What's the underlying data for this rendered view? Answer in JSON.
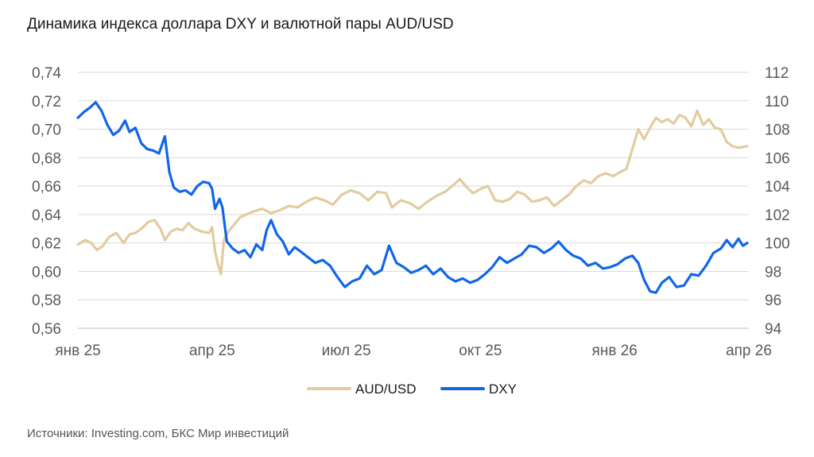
{
  "title": "Динамика индекса доллара DXY и валютной пары AUD/USD",
  "source": "Источники: Investing.com, БКС Мир инвестиций",
  "colors": {
    "aud": "#E2CC9F",
    "dxy": "#1166E8",
    "grid": "#D9D9D9",
    "axis": "#BFBFBF"
  },
  "chart_data": {
    "type": "line",
    "x_ticks": [
      "янв 25",
      "апр 25",
      "июл 25",
      "окт 25",
      "янв 26",
      "апр 26"
    ],
    "x_range": [
      "2025-01-01",
      "2026-04-01"
    ],
    "y_left": {
      "ticks": [
        "0,56",
        "0,58",
        "0,60",
        "0,62",
        "0,64",
        "0,66",
        "0,68",
        "0,70",
        "0,72",
        "0,74"
      ],
      "ylim": [
        0.56,
        0.74
      ]
    },
    "y_right": {
      "ticks": [
        "94",
        "96",
        "98",
        "100",
        "102",
        "104",
        "106",
        "108",
        "110",
        "112"
      ],
      "ylim": [
        94,
        112
      ]
    },
    "grid": true,
    "legend_position": "bottom",
    "series": [
      {
        "name": "AUD/USD",
        "axis": "left",
        "points": [
          [
            "2025-01-01",
            0.619
          ],
          [
            "2025-01-06",
            0.622
          ],
          [
            "2025-01-10",
            0.62
          ],
          [
            "2025-01-14",
            0.615
          ],
          [
            "2025-01-18",
            0.618
          ],
          [
            "2025-01-22",
            0.624
          ],
          [
            "2025-01-27",
            0.627
          ],
          [
            "2025-02-01",
            0.62
          ],
          [
            "2025-02-05",
            0.626
          ],
          [
            "2025-02-09",
            0.627
          ],
          [
            "2025-02-13",
            0.63
          ],
          [
            "2025-02-18",
            0.635
          ],
          [
            "2025-02-22",
            0.636
          ],
          [
            "2025-02-26",
            0.63
          ],
          [
            "2025-03-01",
            0.622
          ],
          [
            "2025-03-05",
            0.628
          ],
          [
            "2025-03-09",
            0.63
          ],
          [
            "2025-03-13",
            0.629
          ],
          [
            "2025-03-17",
            0.634
          ],
          [
            "2025-03-21",
            0.63
          ],
          [
            "2025-03-26",
            0.628
          ],
          [
            "2025-03-31",
            0.627
          ],
          [
            "2025-04-02",
            0.631
          ],
          [
            "2025-04-04",
            0.614
          ],
          [
            "2025-04-06",
            0.605
          ],
          [
            "2025-04-08",
            0.598
          ],
          [
            "2025-04-10",
            0.622
          ],
          [
            "2025-04-13",
            0.628
          ],
          [
            "2025-04-17",
            0.633
          ],
          [
            "2025-04-21",
            0.638
          ],
          [
            "2025-04-25",
            0.64
          ],
          [
            "2025-04-30",
            0.642
          ],
          [
            "2025-05-06",
            0.644
          ],
          [
            "2025-05-12",
            0.641
          ],
          [
            "2025-05-18",
            0.643
          ],
          [
            "2025-05-24",
            0.646
          ],
          [
            "2025-05-30",
            0.645
          ],
          [
            "2025-06-05",
            0.649
          ],
          [
            "2025-06-11",
            0.652
          ],
          [
            "2025-06-17",
            0.65
          ],
          [
            "2025-06-23",
            0.647
          ],
          [
            "2025-06-29",
            0.654
          ],
          [
            "2025-07-05",
            0.657
          ],
          [
            "2025-07-11",
            0.655
          ],
          [
            "2025-07-17",
            0.65
          ],
          [
            "2025-07-23",
            0.656
          ],
          [
            "2025-07-29",
            0.655
          ],
          [
            "2025-08-02",
            0.645
          ],
          [
            "2025-08-08",
            0.65
          ],
          [
            "2025-08-14",
            0.648
          ],
          [
            "2025-08-20",
            0.644
          ],
          [
            "2025-08-26",
            0.649
          ],
          [
            "2025-09-01",
            0.653
          ],
          [
            "2025-09-07",
            0.656
          ],
          [
            "2025-09-13",
            0.661
          ],
          [
            "2025-09-17",
            0.665
          ],
          [
            "2025-09-21",
            0.66
          ],
          [
            "2025-09-26",
            0.655
          ],
          [
            "2025-10-01",
            0.658
          ],
          [
            "2025-10-06",
            0.66
          ],
          [
            "2025-10-11",
            0.65
          ],
          [
            "2025-10-16",
            0.649
          ],
          [
            "2025-10-21",
            0.651
          ],
          [
            "2025-10-26",
            0.656
          ],
          [
            "2025-10-31",
            0.654
          ],
          [
            "2025-11-05",
            0.649
          ],
          [
            "2025-11-10",
            0.65
          ],
          [
            "2025-11-15",
            0.652
          ],
          [
            "2025-11-20",
            0.646
          ],
          [
            "2025-11-25",
            0.65
          ],
          [
            "2025-11-30",
            0.654
          ],
          [
            "2025-12-05",
            0.66
          ],
          [
            "2025-12-10",
            0.664
          ],
          [
            "2025-12-15",
            0.662
          ],
          [
            "2025-12-20",
            0.667
          ],
          [
            "2025-12-25",
            0.669
          ],
          [
            "2025-12-30",
            0.667
          ],
          [
            "2026-01-04",
            0.67
          ],
          [
            "2026-01-08",
            0.672
          ],
          [
            "2026-01-12",
            0.686
          ],
          [
            "2026-01-16",
            0.7
          ],
          [
            "2026-01-20",
            0.693
          ],
          [
            "2026-01-24",
            0.701
          ],
          [
            "2026-01-28",
            0.708
          ],
          [
            "2026-02-01",
            0.705
          ],
          [
            "2026-02-05",
            0.707
          ],
          [
            "2026-02-09",
            0.704
          ],
          [
            "2026-02-13",
            0.71
          ],
          [
            "2026-02-17",
            0.708
          ],
          [
            "2026-02-21",
            0.702
          ],
          [
            "2026-02-25",
            0.713
          ],
          [
            "2026-03-01",
            0.703
          ],
          [
            "2026-03-05",
            0.707
          ],
          [
            "2026-03-09",
            0.701
          ],
          [
            "2026-03-13",
            0.7
          ],
          [
            "2026-03-17",
            0.691
          ],
          [
            "2026-03-21",
            0.688
          ],
          [
            "2026-03-25",
            0.687
          ],
          [
            "2026-03-31",
            0.688
          ]
        ]
      },
      {
        "name": "DXY",
        "axis": "right",
        "points": [
          [
            "2025-01-01",
            108.8
          ],
          [
            "2025-01-05",
            109.2
          ],
          [
            "2025-01-09",
            109.5
          ],
          [
            "2025-01-13",
            109.9
          ],
          [
            "2025-01-17",
            109.3
          ],
          [
            "2025-01-21",
            108.3
          ],
          [
            "2025-01-25",
            107.6
          ],
          [
            "2025-01-29",
            107.9
          ],
          [
            "2025-02-02",
            108.6
          ],
          [
            "2025-02-05",
            107.8
          ],
          [
            "2025-02-09",
            108.1
          ],
          [
            "2025-02-13",
            107.0
          ],
          [
            "2025-02-17",
            106.6
          ],
          [
            "2025-02-21",
            106.5
          ],
          [
            "2025-02-25",
            106.3
          ],
          [
            "2025-03-01",
            107.5
          ],
          [
            "2025-03-04",
            105.0
          ],
          [
            "2025-03-07",
            103.9
          ],
          [
            "2025-03-11",
            103.6
          ],
          [
            "2025-03-15",
            103.7
          ],
          [
            "2025-03-19",
            103.4
          ],
          [
            "2025-03-23",
            104.0
          ],
          [
            "2025-03-27",
            104.3
          ],
          [
            "2025-03-31",
            104.2
          ],
          [
            "2025-04-02",
            103.8
          ],
          [
            "2025-04-04",
            102.4
          ],
          [
            "2025-04-07",
            103.1
          ],
          [
            "2025-04-09",
            102.5
          ],
          [
            "2025-04-12",
            100.1
          ],
          [
            "2025-04-16",
            99.6
          ],
          [
            "2025-04-20",
            99.3
          ],
          [
            "2025-04-24",
            99.5
          ],
          [
            "2025-04-28",
            99.0
          ],
          [
            "2025-05-02",
            99.9
          ],
          [
            "2025-05-06",
            99.5
          ],
          [
            "2025-05-09",
            100.9
          ],
          [
            "2025-05-12",
            101.6
          ],
          [
            "2025-05-16",
            100.6
          ],
          [
            "2025-05-20",
            100.1
          ],
          [
            "2025-05-24",
            99.2
          ],
          [
            "2025-05-28",
            99.7
          ],
          [
            "2025-06-01",
            99.4
          ],
          [
            "2025-06-06",
            99.0
          ],
          [
            "2025-06-11",
            98.6
          ],
          [
            "2025-06-16",
            98.8
          ],
          [
            "2025-06-21",
            98.4
          ],
          [
            "2025-06-26",
            97.6
          ],
          [
            "2025-07-01",
            96.9
          ],
          [
            "2025-07-06",
            97.3
          ],
          [
            "2025-07-11",
            97.5
          ],
          [
            "2025-07-16",
            98.4
          ],
          [
            "2025-07-21",
            97.8
          ],
          [
            "2025-07-26",
            98.1
          ],
          [
            "2025-07-31",
            99.8
          ],
          [
            "2025-08-05",
            98.6
          ],
          [
            "2025-08-10",
            98.3
          ],
          [
            "2025-08-15",
            97.9
          ],
          [
            "2025-08-20",
            98.1
          ],
          [
            "2025-08-25",
            98.4
          ],
          [
            "2025-08-30",
            97.8
          ],
          [
            "2025-09-04",
            98.2
          ],
          [
            "2025-09-09",
            97.6
          ],
          [
            "2025-09-14",
            97.3
          ],
          [
            "2025-09-19",
            97.5
          ],
          [
            "2025-09-24",
            97.2
          ],
          [
            "2025-09-29",
            97.4
          ],
          [
            "2025-10-04",
            97.8
          ],
          [
            "2025-10-09",
            98.3
          ],
          [
            "2025-10-14",
            99.0
          ],
          [
            "2025-10-19",
            98.6
          ],
          [
            "2025-10-24",
            98.9
          ],
          [
            "2025-10-29",
            99.2
          ],
          [
            "2025-11-03",
            99.8
          ],
          [
            "2025-11-08",
            99.7
          ],
          [
            "2025-11-13",
            99.3
          ],
          [
            "2025-11-18",
            99.6
          ],
          [
            "2025-11-23",
            100.1
          ],
          [
            "2025-11-28",
            99.5
          ],
          [
            "2025-12-03",
            99.1
          ],
          [
            "2025-12-08",
            98.9
          ],
          [
            "2025-12-13",
            98.4
          ],
          [
            "2025-12-18",
            98.6
          ],
          [
            "2025-12-23",
            98.2
          ],
          [
            "2025-12-28",
            98.3
          ],
          [
            "2026-01-02",
            98.5
          ],
          [
            "2026-01-07",
            98.9
          ],
          [
            "2026-01-12",
            99.1
          ],
          [
            "2026-01-16",
            98.6
          ],
          [
            "2026-01-20",
            97.4
          ],
          [
            "2026-01-24",
            96.6
          ],
          [
            "2026-01-28",
            96.5
          ],
          [
            "2026-02-01",
            97.2
          ],
          [
            "2026-02-06",
            97.6
          ],
          [
            "2026-02-11",
            96.9
          ],
          [
            "2026-02-16",
            97.0
          ],
          [
            "2026-02-21",
            97.8
          ],
          [
            "2026-02-26",
            97.7
          ],
          [
            "2026-03-03",
            98.4
          ],
          [
            "2026-03-08",
            99.3
          ],
          [
            "2026-03-13",
            99.6
          ],
          [
            "2026-03-17",
            100.2
          ],
          [
            "2026-03-21",
            99.7
          ],
          [
            "2026-03-25",
            100.3
          ],
          [
            "2026-03-28",
            99.8
          ],
          [
            "2026-03-31",
            100.0
          ]
        ]
      }
    ]
  }
}
